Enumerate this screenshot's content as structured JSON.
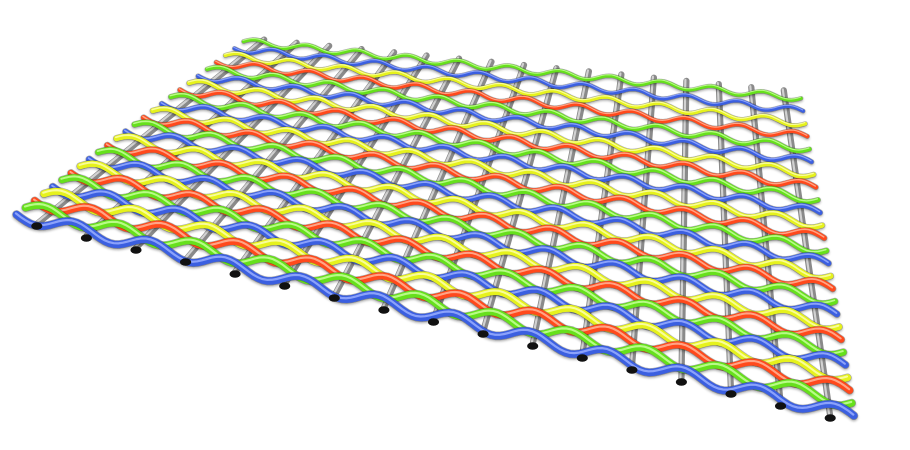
{
  "scene": {
    "subject": "woven-mesh",
    "background_color": "#ffffff",
    "warp_color": "#8a8a8a",
    "warp_highlight": "#d9d9d9",
    "weft_colors": [
      "#3b5fe0",
      "#66e01f",
      "#ff4a1a",
      "#e6f21f"
    ],
    "weft_highlights": [
      "#9aaeff",
      "#c8ff9a",
      "#ffb49a",
      "#fbffb0"
    ]
  }
}
